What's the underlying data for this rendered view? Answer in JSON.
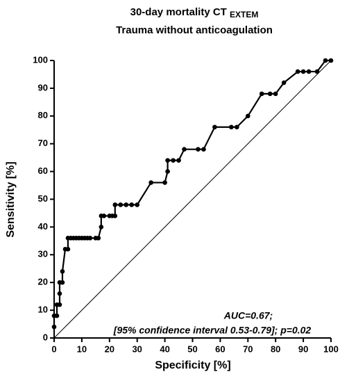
{
  "chart_data": {
    "type": "line",
    "title": "30-day mortality CT",
    "title_subscript": "EXTEM",
    "subtitle": "Trauma without anticoagulation",
    "x_label": "Specificity [%]",
    "y_label": "Sensitivity [%]",
    "annotations": [
      "AUC=0.67;",
      "[95% confidence interval 0.53-0.79]; p=0.02"
    ],
    "color": "#000000",
    "x": [
      0,
      0,
      1,
      1,
      2,
      2,
      2,
      3,
      3,
      4,
      5,
      5,
      6,
      7,
      8,
      9,
      10,
      11,
      12,
      13,
      15,
      16,
      17,
      17,
      18,
      20,
      21,
      22,
      22,
      24,
      26,
      28,
      30,
      35,
      40,
      41,
      41,
      43,
      45,
      47,
      52,
      54,
      58,
      64,
      66,
      70,
      75,
      78,
      80,
      83,
      88,
      90,
      92,
      95,
      98,
      100
    ],
    "values": [
      4,
      8,
      8,
      12,
      12,
      16,
      20,
      20,
      24,
      32,
      32,
      36,
      36,
      36,
      36,
      36,
      36,
      36,
      36,
      36,
      36,
      36,
      40,
      44,
      44,
      44,
      44,
      44,
      48,
      48,
      48,
      48,
      48,
      56,
      56,
      60,
      64,
      64,
      64,
      68,
      68,
      68,
      76,
      76,
      76,
      80,
      88,
      88,
      88,
      92,
      96,
      96,
      96,
      96,
      100,
      100
    ],
    "xlim": [
      0,
      100
    ],
    "ylim": [
      0,
      100
    ],
    "xticks": [
      0,
      10,
      20,
      30,
      40,
      50,
      60,
      70,
      80,
      90,
      100
    ],
    "yticks": [
      0,
      10,
      20,
      30,
      40,
      50,
      60,
      70,
      80,
      90,
      100
    ]
  }
}
